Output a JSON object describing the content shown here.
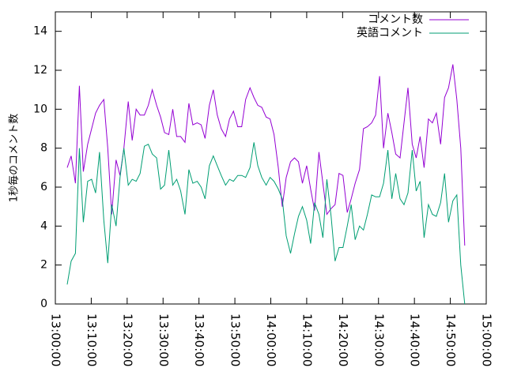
{
  "chart_data": {
    "type": "line",
    "ylabel": "1秒毎のコメント数",
    "xlim": [
      0,
      120
    ],
    "xticks": [
      {
        "value": 0,
        "label": "13:00:00"
      },
      {
        "value": 10,
        "label": "13:10:00"
      },
      {
        "value": 20,
        "label": "13:20:00"
      },
      {
        "value": 30,
        "label": "13:30:00"
      },
      {
        "value": 40,
        "label": "13:40:00"
      },
      {
        "value": 50,
        "label": "13:50:00"
      },
      {
        "value": 60,
        "label": "14:00:00"
      },
      {
        "value": 70,
        "label": "14:10:00"
      },
      {
        "value": 80,
        "label": "14:20:00"
      },
      {
        "value": 90,
        "label": "14:30:00"
      },
      {
        "value": 100,
        "label": "14:40:00"
      },
      {
        "value": 110,
        "label": "14:50:00"
      },
      {
        "value": 120,
        "label": "15:00:00"
      }
    ],
    "ylim": [
      0,
      15
    ],
    "yticks": [
      0,
      2,
      4,
      6,
      8,
      10,
      12,
      14
    ],
    "legend": "top-right",
    "x": [
      3.3,
      4.4,
      5.6,
      6.7,
      7.8,
      9.0,
      10.1,
      11.2,
      12.3,
      13.5,
      14.6,
      15.7,
      16.9,
      18.0,
      19.1,
      20.3,
      21.4,
      22.5,
      23.6,
      24.8,
      25.9,
      27.0,
      28.2,
      29.3,
      30.4,
      31.6,
      32.7,
      33.8,
      34.9,
      36.1,
      37.2,
      38.3,
      39.5,
      40.6,
      41.7,
      42.9,
      44.0,
      45.1,
      46.2,
      47.4,
      48.5,
      49.6,
      50.8,
      51.9,
      53.0,
      54.2,
      55.3,
      56.4,
      57.5,
      58.7,
      59.8,
      60.9,
      62.1,
      63.2,
      64.3,
      65.5,
      66.6,
      67.7,
      68.8,
      70.0,
      71.1,
      72.2,
      73.4,
      74.5,
      75.6,
      76.8,
      77.9,
      79.0,
      80.1,
      81.3,
      82.4,
      83.5,
      84.7,
      85.8,
      86.9,
      88.1,
      89.2,
      90.3,
      91.4,
      92.6,
      93.7,
      94.8,
      96.0,
      97.1,
      98.2,
      99.4,
      100.5,
      101.6,
      102.7,
      103.9,
      105.0,
      106.1,
      107.3,
      108.4,
      109.5,
      110.7,
      111.8,
      112.9,
      114.0
    ],
    "series": [
      {
        "name": "コメント数",
        "color": "#9400d3",
        "values": [
          7.0,
          7.6,
          6.2,
          11.2,
          6.8,
          8.2,
          9.0,
          9.8,
          10.2,
          10.5,
          8.0,
          4.6,
          7.4,
          6.6,
          8.0,
          10.4,
          8.4,
          10.0,
          9.7,
          9.7,
          10.2,
          11.0,
          10.2,
          9.6,
          8.8,
          8.7,
          10.0,
          8.6,
          8.6,
          8.3,
          10.3,
          9.2,
          9.3,
          9.2,
          8.5,
          10.2,
          11.0,
          9.7,
          9.0,
          8.6,
          9.5,
          9.9,
          9.1,
          9.1,
          10.5,
          11.1,
          10.6,
          10.2,
          10.1,
          9.6,
          9.5,
          8.7,
          7.0,
          5.0,
          6.5,
          7.3,
          7.5,
          7.3,
          6.2,
          7.1,
          5.9,
          4.8,
          7.8,
          6.2,
          4.6,
          4.9,
          5.1,
          6.7,
          6.6,
          4.7,
          5.4,
          6.2,
          6.9,
          9.0,
          9.1,
          9.3,
          9.7,
          11.7,
          8.0,
          9.8,
          8.8,
          7.7,
          7.5,
          9.3,
          11.1,
          8.2,
          7.5,
          8.6,
          7.0,
          9.5,
          9.3,
          9.8,
          8.2,
          10.6,
          11.1,
          12.3,
          10.5,
          8.0,
          3.0
        ]
      },
      {
        "name": "英語コメント",
        "color": "#009e73",
        "values": [
          1.0,
          2.2,
          2.6,
          8.0,
          4.2,
          6.3,
          6.4,
          5.7,
          7.8,
          4.3,
          2.1,
          5.1,
          4.0,
          6.5,
          8.0,
          6.1,
          6.4,
          6.3,
          6.7,
          8.1,
          8.2,
          7.7,
          7.5,
          5.9,
          6.1,
          7.9,
          6.1,
          6.4,
          5.8,
          4.6,
          6.9,
          6.2,
          6.3,
          6.0,
          5.4,
          7.1,
          7.6,
          7.1,
          6.6,
          6.1,
          6.4,
          6.3,
          6.6,
          6.6,
          6.5,
          7.0,
          8.3,
          7.1,
          6.5,
          6.1,
          6.5,
          6.3,
          5.9,
          5.4,
          3.5,
          2.6,
          3.6,
          4.5,
          5.0,
          4.3,
          3.1,
          5.2,
          4.6,
          3.4,
          6.4,
          4.5,
          2.2,
          2.9,
          2.9,
          4.0,
          5.1,
          3.3,
          4.0,
          3.8,
          4.6,
          5.6,
          5.5,
          5.5,
          6.2,
          7.9,
          5.4,
          6.7,
          5.4,
          5.1,
          5.7,
          7.9,
          5.8,
          6.3,
          3.4,
          5.1,
          4.6,
          4.5,
          5.2,
          6.7,
          4.2,
          5.3,
          5.6,
          2.0,
          0.0
        ]
      }
    ]
  }
}
